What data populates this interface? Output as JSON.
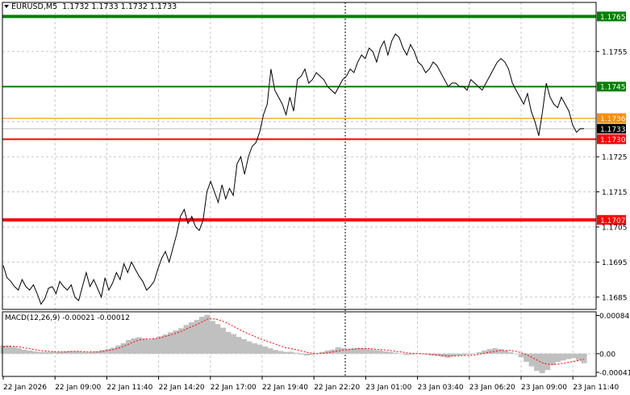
{
  "header": {
    "symbol_tf": "EURUSD,M5",
    "ohlc": "1.1732 1.1733 1.1732 1.1733"
  },
  "macd_label": "MACD(12,26,9) -0.00021 -0.00012",
  "colors": {
    "price_line": "#000000",
    "resistance": "#008000",
    "support": "#ff0000",
    "orange_level": "#ff8c00",
    "current_price_bg": "#000000",
    "macd_hist": "#c0c0c0",
    "macd_signal": "#ff0000",
    "grid": "#c8c8c8"
  },
  "chart_data": [
    {
      "type": "line",
      "series": [
        {
          "name": "EURUSD,M5",
          "values": [
            1.1694,
            1.16905,
            1.16895,
            1.1688,
            1.1687,
            1.169,
            1.1688,
            1.1687,
            1.16885,
            1.1686,
            1.1683,
            1.16845,
            1.16875,
            1.1688,
            1.1686,
            1.16895,
            1.1688,
            1.1687,
            1.16885,
            1.1685,
            1.1684,
            1.1688,
            1.1692,
            1.1688,
            1.169,
            1.16875,
            1.1685,
            1.16905,
            1.1687,
            1.1689,
            1.1692,
            1.169,
            1.16945,
            1.1692,
            1.1695,
            1.1693,
            1.1691,
            1.16895,
            1.1687,
            1.1688,
            1.16895,
            1.1693,
            1.1696,
            1.1698,
            1.1695,
            1.1699,
            1.1703,
            1.1708,
            1.171,
            1.1706,
            1.1708,
            1.1705,
            1.1704,
            1.1707,
            1.1715,
            1.1718,
            1.1715,
            1.1712,
            1.1717,
            1.1713,
            1.1716,
            1.1714,
            1.1723,
            1.1725,
            1.172,
            1.1725,
            1.1728,
            1.1729,
            1.1732,
            1.1737,
            1.174,
            1.175,
            1.1744,
            1.1742,
            1.174,
            1.1737,
            1.1742,
            1.1738,
            1.1747,
            1.1748,
            1.175,
            1.1746,
            1.1747,
            1.1749,
            1.1748,
            1.1747,
            1.1745,
            1.1744,
            1.1743,
            1.1745,
            1.1747,
            1.1748,
            1.175,
            1.1749,
            1.1752,
            1.1754,
            1.1753,
            1.1756,
            1.1755,
            1.1752,
            1.1756,
            1.1758,
            1.1754,
            1.1758,
            1.176,
            1.1759,
            1.1756,
            1.1754,
            1.1757,
            1.1755,
            1.1752,
            1.1751,
            1.1749,
            1.175,
            1.1752,
            1.1751,
            1.1749,
            1.1747,
            1.1745,
            1.1746,
            1.1746,
            1.1745,
            1.1745,
            1.1744,
            1.1747,
            1.1746,
            1.1745,
            1.1744,
            1.1746,
            1.1748,
            1.175,
            1.1752,
            1.1753,
            1.1752,
            1.175,
            1.1746,
            1.1744,
            1.1742,
            1.174,
            1.1743,
            1.1738,
            1.1735,
            1.1731,
            1.1738,
            1.1746,
            1.1742,
            1.174,
            1.1739,
            1.1742,
            1.174,
            1.1738,
            1.1734,
            1.1732,
            1.1733,
            1.1733
          ]
        }
      ],
      "x_tick_labels": [
        "22 Jan 2026",
        "22 Jan 09:00",
        "22 Jan 11:40",
        "22 Jan 14:20",
        "22 Jan 17:00",
        "22 Jan 19:40",
        "22 Jan 22:20",
        "23 Jan 01:00",
        "23 Jan 03:40",
        "23 Jan 06:20",
        "23 Jan 09:00",
        "23 Jan 11:40"
      ],
      "y_ticks": [
        "1.1765",
        "1.1755",
        "1.1745",
        "1.1736",
        "1.1733",
        "1.1730",
        "1.1725",
        "1.1715",
        "1.1707",
        "1.1705",
        "1.1695",
        "1.1685"
      ],
      "ylim": [
        1.16815,
        1.1769
      ],
      "horizontal_levels": [
        {
          "value": 1.1765,
          "label": "1.1765",
          "role": "resistance"
        },
        {
          "value": 1.1745,
          "label": "1.1745",
          "role": "resistance"
        },
        {
          "value": 1.1736,
          "label": "1.1736",
          "role": "orange"
        },
        {
          "value": 1.173,
          "label": "1.1730",
          "role": "support"
        },
        {
          "value": 1.1707,
          "label": "1.1707",
          "role": "support"
        }
      ],
      "current_price": "1.1733",
      "grid": true
    },
    {
      "type": "bar",
      "series": [
        {
          "name": "MACD",
          "values": [
            0.00018,
            0.00018,
            0.00015,
            0.00012,
            9e-05,
            7e-05,
            5e-05,
            4e-05,
            4e-05,
            4e-05,
            3e-05,
            4e-05,
            5e-05,
            6e-05,
            6e-05,
            4e-05,
            3e-05,
            4e-05,
            5e-05,
            8e-05,
            0.0001,
            0.00013,
            0.00018,
            0.00023,
            0.0003,
            0.00034,
            0.00036,
            0.00033,
            0.00031,
            0.00034,
            0.00038,
            0.00042,
            0.00047,
            0.00051,
            0.00056,
            0.00063,
            0.00069,
            0.00074,
            0.00081,
            0.00085,
            0.00072,
            0.00065,
            0.00057,
            0.00048,
            0.00043,
            0.00037,
            0.00032,
            0.00027,
            0.00023,
            0.0002,
            0.00016,
            0.00012,
            8e-05,
            6e-05,
            4e-05,
            4e-05,
            2e-05,
            -2e-05,
            -4e-05,
            -3e-05,
            1e-05,
            4e-05,
            7e-05,
            9e-05,
            0.00014,
            0.00012,
            0.00011,
            0.00012,
            0.00013,
            0.00012,
            0.0001,
            8e-05,
            7e-05,
            5e-05,
            4e-05,
            2e-05,
            0.0,
            -3e-05,
            -2e-05,
            1e-05,
            0.0,
            -2e-05,
            -4e-05,
            -5e-05,
            -7e-05,
            -9e-05,
            -6e-05,
            -4e-05,
            -3e-05,
            -2e-05,
            0.0,
            3e-05,
            7e-05,
            0.0001,
            0.00012,
            0.0001,
            7e-05,
            3e-05,
            0.0,
            -8e-05,
            -0.00018,
            -0.00028,
            -0.00038,
            -0.00043,
            -0.00036,
            -0.00025,
            -0.00018,
            -0.00015,
            -0.00012,
            -0.0001,
            -0.00015,
            -0.00021
          ]
        },
        {
          "name": "Signal",
          "values": [
            0.00015,
            0.00016,
            0.00016,
            0.00015,
            0.00013,
            0.00011,
            9e-05,
            7e-05,
            6e-05,
            5e-05,
            4e-05,
            4e-05,
            4e-05,
            5e-05,
            5e-05,
            5e-05,
            4e-05,
            4e-05,
            4e-05,
            5e-05,
            7e-05,
            9e-05,
            0.00012,
            0.00016,
            0.00021,
            0.00026,
            0.0003,
            0.00032,
            0.00032,
            0.00033,
            0.00035,
            0.00038,
            0.00041,
            0.00045,
            0.00049,
            0.00054,
            0.00059,
            0.00064,
            0.0007,
            0.00076,
            0.00077,
            0.00075,
            0.00071,
            0.00066,
            0.0006,
            0.00054,
            0.00048,
            0.00043,
            0.00038,
            0.00033,
            0.00029,
            0.00025,
            0.00021,
            0.00017,
            0.00013,
            0.00011,
            9e-05,
            6e-05,
            3e-05,
            1e-05,
            0.0,
            1e-05,
            2e-05,
            4e-05,
            6e-05,
            8e-05,
            9e-05,
            0.0001,
            0.00011,
            0.00011,
            0.00011,
            0.0001,
            9e-05,
            8e-05,
            7e-05,
            5e-05,
            4e-05,
            2e-05,
            1e-05,
            0.0,
            0.0,
            -1e-05,
            -2e-05,
            -3e-05,
            -4e-05,
            -5e-05,
            -5e-05,
            -5e-05,
            -4e-05,
            -4e-05,
            -3e-05,
            -1e-05,
            1e-05,
            3e-05,
            5e-05,
            7e-05,
            7e-05,
            7e-05,
            5e-05,
            2e-05,
            -2e-05,
            -8e-05,
            -0.00014,
            -0.0002,
            -0.00023,
            -0.00024,
            -0.00023,
            -0.00021,
            -0.00019,
            -0.00017,
            -0.00015,
            -0.00012
          ]
        }
      ],
      "y_ticks": [
        "0.00084",
        "0.00",
        "-0.00041"
      ],
      "ylim": [
        -0.0005,
        0.00092
      ]
    }
  ]
}
